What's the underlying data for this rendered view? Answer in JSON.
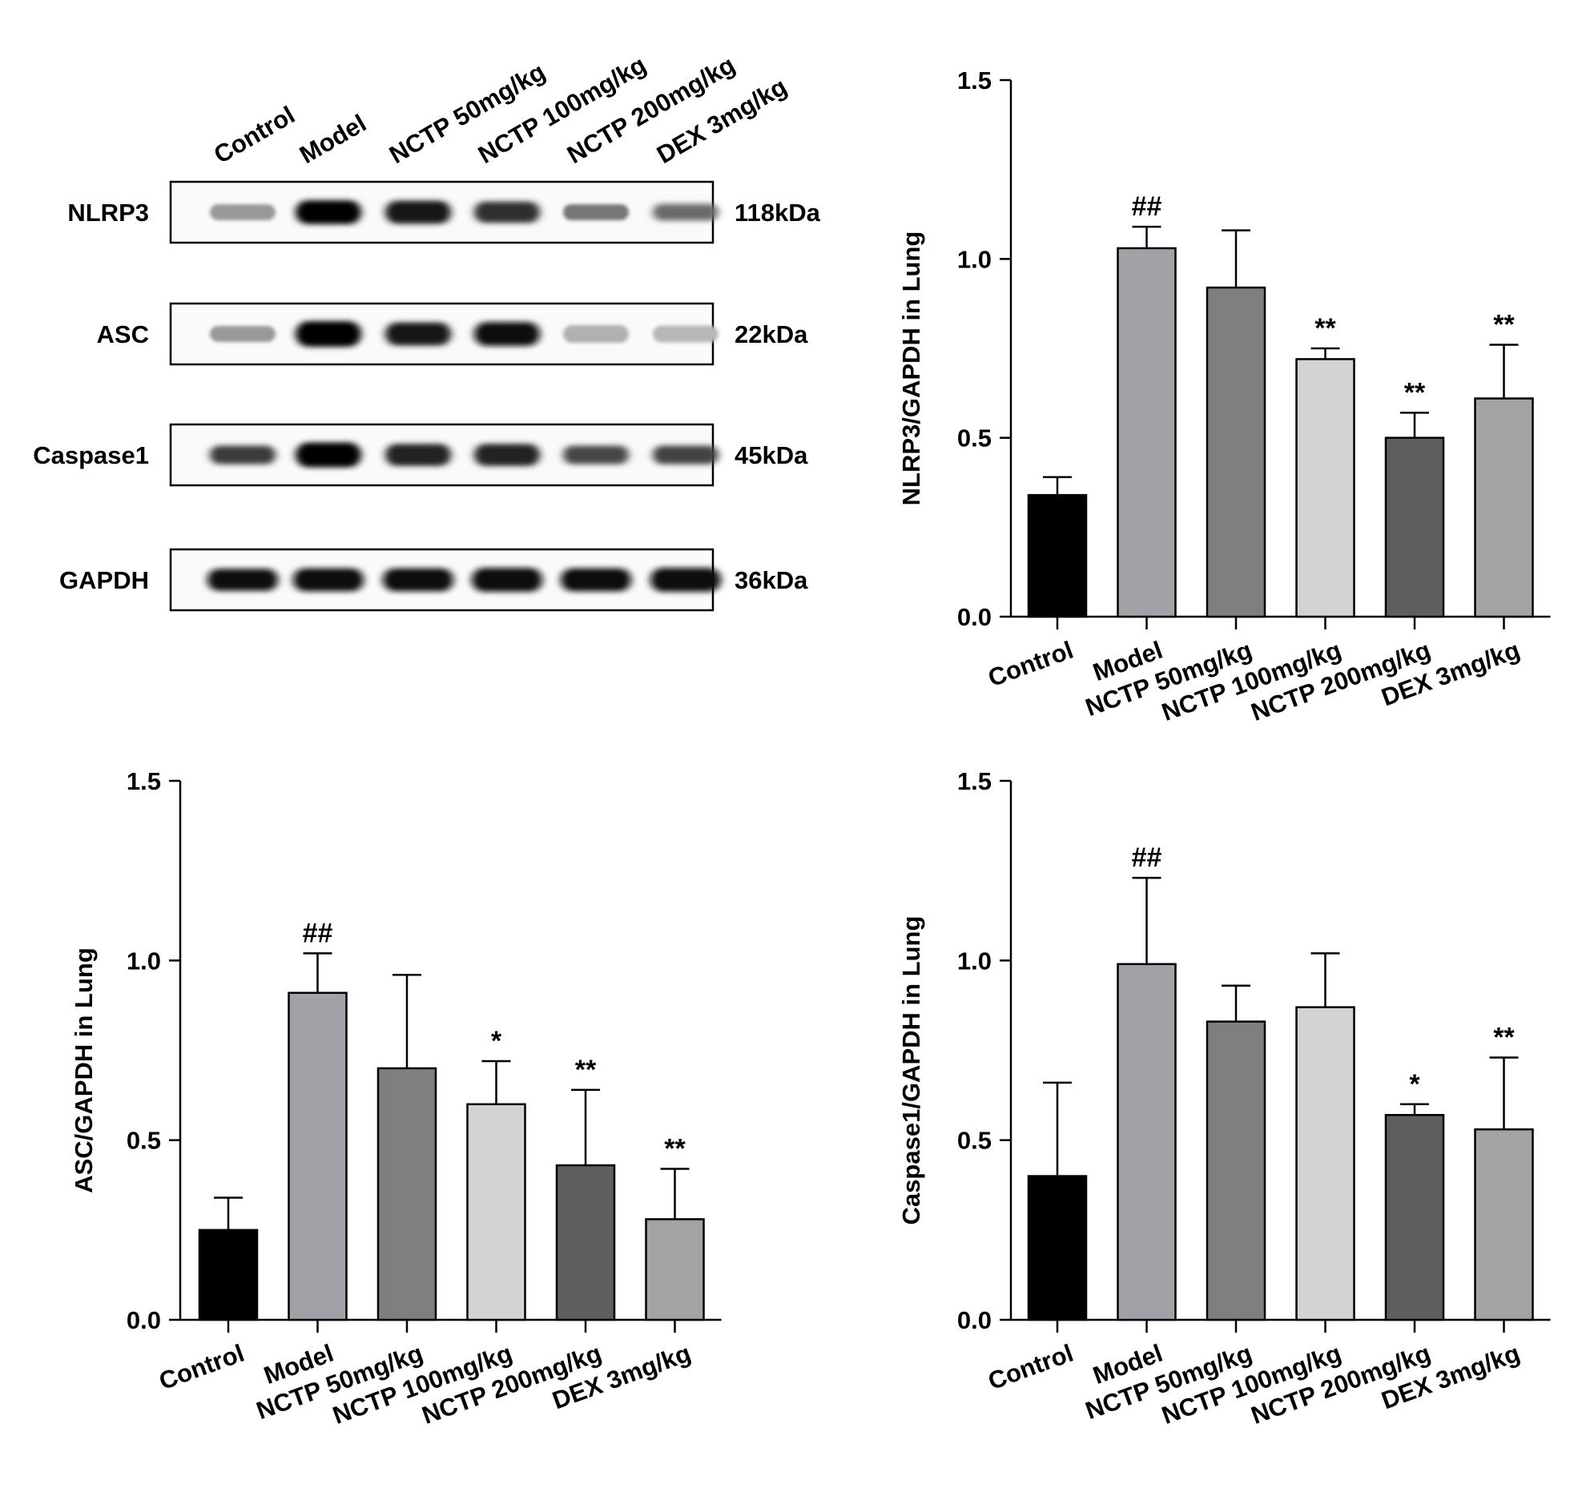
{
  "blot": {
    "lanes": [
      "Control",
      "Model",
      "NCTP 50mg/kg",
      "NCTP 100mg/kg",
      "NCTP 200mg/kg",
      "DEX 3mg/kg"
    ],
    "rows": [
      {
        "protein": "NLRP3",
        "size": "118kDa",
        "intensity": [
          0.35,
          1.0,
          0.9,
          0.8,
          0.5,
          0.55
        ],
        "thickness": [
          0.45,
          0.9,
          0.85,
          0.75,
          0.45,
          0.5
        ]
      },
      {
        "protein": "ASC",
        "size": "22kDa",
        "intensity": [
          0.35,
          1.0,
          0.9,
          0.95,
          0.25,
          0.22
        ],
        "thickness": [
          0.45,
          1.0,
          0.85,
          0.9,
          0.55,
          0.5
        ]
      },
      {
        "protein": "Caspase1",
        "size": "45kDa",
        "intensity": [
          0.75,
          1.0,
          0.85,
          0.85,
          0.7,
          0.72
        ],
        "thickness": [
          0.6,
          0.95,
          0.8,
          0.8,
          0.6,
          0.6
        ]
      },
      {
        "protein": "GAPDH",
        "size": "36kDa",
        "intensity": [
          0.95,
          0.95,
          0.95,
          0.95,
          0.95,
          0.95
        ],
        "thickness": [
          0.8,
          0.85,
          0.85,
          0.9,
          0.85,
          0.9
        ]
      }
    ]
  },
  "colors": [
    "#000000",
    "#a1a1a7",
    "#7f7f7f",
    "#d3d3d3",
    "#5e5e5e",
    "#a3a3a6"
  ],
  "chart_data": [
    {
      "type": "bar",
      "id": "nlrp3",
      "ylabel": "NLRP3/GAPDH in Lung",
      "categories": [
        "Control",
        "Model",
        "NCTP 50mg/kg",
        "NCTP 100mg/kg",
        "NCTP 200mg/kg",
        "DEX 3mg/kg"
      ],
      "values": [
        0.34,
        1.03,
        0.92,
        0.72,
        0.5,
        0.61
      ],
      "errors": [
        0.05,
        0.06,
        0.16,
        0.03,
        0.07,
        0.15
      ],
      "annotations": [
        "",
        "##",
        "",
        "**",
        "**",
        "**"
      ],
      "ylim": [
        0,
        1.5
      ],
      "yticks": [
        "0.0",
        "0.5",
        "1.0",
        "1.5"
      ]
    },
    {
      "type": "bar",
      "id": "asc",
      "ylabel": "ASC/GAPDH in Lung",
      "categories": [
        "Control",
        "Model",
        "NCTP 50mg/kg",
        "NCTP 100mg/kg",
        "NCTP 200mg/kg",
        "DEX 3mg/kg"
      ],
      "values": [
        0.25,
        0.91,
        0.7,
        0.6,
        0.43,
        0.28
      ],
      "errors": [
        0.09,
        0.11,
        0.26,
        0.12,
        0.21,
        0.14
      ],
      "annotations": [
        "",
        "##",
        "",
        "*",
        "**",
        "**"
      ],
      "ylim": [
        0,
        1.5
      ],
      "yticks": [
        "0.0",
        "0.5",
        "1.0",
        "1.5"
      ]
    },
    {
      "type": "bar",
      "id": "caspase1",
      "ylabel": "Caspase1/GAPDH in Lung",
      "categories": [
        "Control",
        "Model",
        "NCTP 50mg/kg",
        "NCTP 100mg/kg",
        "NCTP 200mg/kg",
        "DEX 3mg/kg"
      ],
      "values": [
        0.4,
        0.99,
        0.83,
        0.87,
        0.57,
        0.53
      ],
      "errors": [
        0.26,
        0.24,
        0.1,
        0.15,
        0.03,
        0.2
      ],
      "annotations": [
        "",
        "##",
        "",
        "",
        "*",
        "**"
      ],
      "ylim": [
        0,
        1.5
      ],
      "yticks": [
        "0.0",
        "0.5",
        "1.0",
        "1.5"
      ]
    }
  ]
}
